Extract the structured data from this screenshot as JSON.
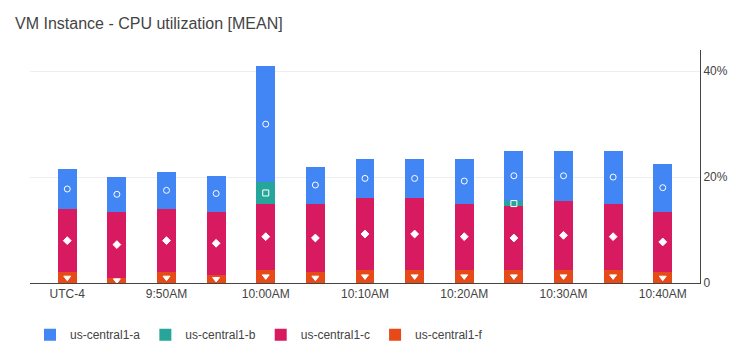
{
  "chart_data": {
    "type": "bar",
    "title": "VM Instance - CPU utilization [MEAN]",
    "stacked": true,
    "categories": [
      "UTC-4",
      null,
      "9:50AM",
      null,
      "10:00AM",
      null,
      "10:10AM",
      null,
      "10:20AM",
      null,
      "10:30AM",
      null,
      "10:40AM"
    ],
    "series": [
      {
        "name": "us-central1-f",
        "color": "#E64A19",
        "marker": "triangle-down",
        "values": [
          2.0,
          1.0,
          2.0,
          1.5,
          2.5,
          2.0,
          2.5,
          2.5,
          2.5,
          2.5,
          2.5,
          2.5,
          2.0
        ]
      },
      {
        "name": "us-central1-c",
        "color": "#D81B60",
        "marker": "diamond",
        "values": [
          12.0,
          12.5,
          12.0,
          12.0,
          12.5,
          13.0,
          13.5,
          13.5,
          12.5,
          12.0,
          13.0,
          12.5,
          11.5
        ]
      },
      {
        "name": "us-central1-b",
        "color": "#26A69A",
        "marker": "square",
        "values": [
          0,
          0,
          0,
          0,
          4.0,
          0,
          0,
          0,
          0,
          1.0,
          0,
          0,
          0
        ]
      },
      {
        "name": "us-central1-a",
        "color": "#4285F4",
        "marker": "circle",
        "values": [
          7.5,
          6.5,
          7.0,
          6.8,
          22.0,
          7.0,
          7.5,
          7.5,
          8.5,
          9.5,
          9.5,
          10.0,
          9.0
        ]
      }
    ],
    "ylim": [
      0,
      44
    ],
    "yticks": [
      0,
      {
        "value": 20,
        "label": "20%"
      },
      {
        "value": 40,
        "label": "40%"
      }
    ],
    "grid": true,
    "legend": "lower left"
  }
}
